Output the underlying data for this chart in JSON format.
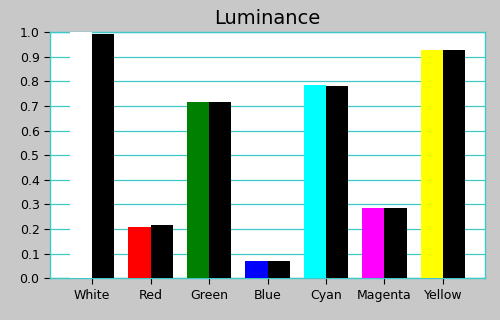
{
  "title": "Luminance",
  "categories": [
    "White",
    "Red",
    "Green",
    "Blue",
    "Cyan",
    "Magenta",
    "Yellow"
  ],
  "measured_values": [
    1.0,
    0.21,
    0.715,
    0.07,
    0.785,
    0.285,
    0.925
  ],
  "reference_values": [
    0.99,
    0.215,
    0.715,
    0.07,
    0.78,
    0.285,
    0.925
  ],
  "bar_colors": [
    "#ffffff",
    "#ff0000",
    "#008000",
    "#0000ff",
    "#00ffff",
    "#ff00ff",
    "#ffff00"
  ],
  "ref_color": "#000000",
  "background_color": "#c8c8c8",
  "plot_bg_color": "#ffffff",
  "ylim": [
    0.0,
    1.0
  ],
  "yticks": [
    0.0,
    0.1,
    0.2,
    0.3,
    0.4,
    0.5,
    0.6,
    0.7,
    0.8,
    0.9,
    1.0
  ],
  "grid_color": "#40c8c8",
  "title_fontsize": 14,
  "tick_fontsize": 9,
  "bar_width": 0.38
}
